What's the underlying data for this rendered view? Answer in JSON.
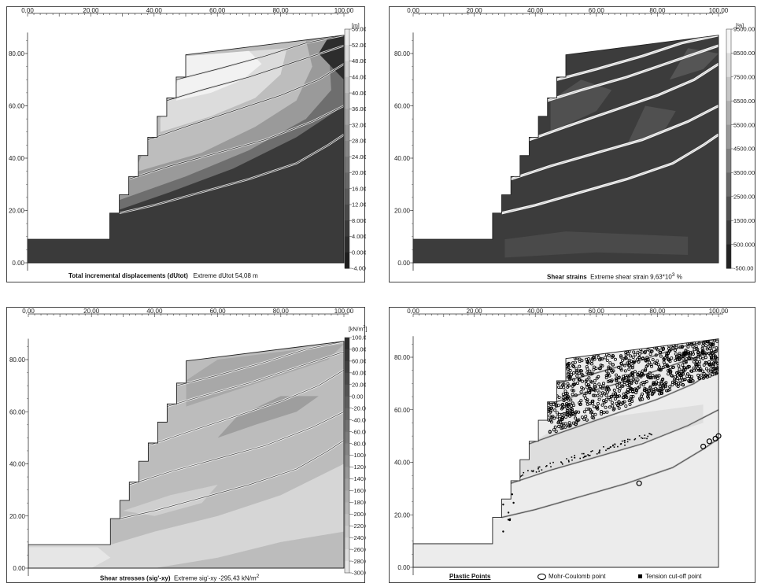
{
  "x_ticks": [
    "0,00",
    "20,00",
    "40,00",
    "60,00",
    "80,00",
    "100,00"
  ],
  "y_ticks": [
    "0.00",
    "20.00",
    "40.00",
    "60.00",
    "80.00"
  ],
  "panels": [
    {
      "caption_bold": "Total incremental displacements (dUtot)",
      "caption_rest": "Extreme dUtot 54,08 m",
      "unit": "[m]",
      "legend": [
        "56.000",
        "52.000",
        "48.000",
        "44.000",
        "40.000",
        "36.000",
        "32.000",
        "28.000",
        "24.000",
        "20.000",
        "16.000",
        "12.000",
        "8.000",
        "4.000",
        "0.000",
        "-4.000"
      ]
    },
    {
      "caption_bold": "Shear strains",
      "caption_rest": "Extreme shear strain 9,63*10",
      "caption_sup": "3",
      "caption_tail": " %",
      "unit": "[%]",
      "legend": [
        "9500.00",
        "8500.00",
        "7500.00",
        "6500.00",
        "5500.00",
        "4500.00",
        "3500.00",
        "2500.00",
        "1500.00",
        "500.000",
        "-500.00"
      ]
    },
    {
      "caption_bold": "Shear stresses (sig'-xy)",
      "caption_rest": "Extreme sig'-xy -295,43 kN/m",
      "caption_sup": "2",
      "unit": "[kN/m",
      "unit_sup": "2",
      "unit_tail": "]",
      "legend": [
        "100.00",
        "80.00",
        "60.00",
        "40.00",
        "20.00",
        "0.00",
        "-20.00",
        "-40.00",
        "-60.00",
        "-80.00",
        "-100.00",
        "-120.00",
        "-140.00",
        "-160.00",
        "-180.00",
        "-200.00",
        "-220.00",
        "-240.00",
        "-260.00",
        "-280.00",
        "-300.00"
      ]
    },
    {
      "caption_bold": "Plastic Points",
      "legend_mc": "Mohr-Coulomb point",
      "legend_tc": "Tension cut-off point"
    }
  ]
}
